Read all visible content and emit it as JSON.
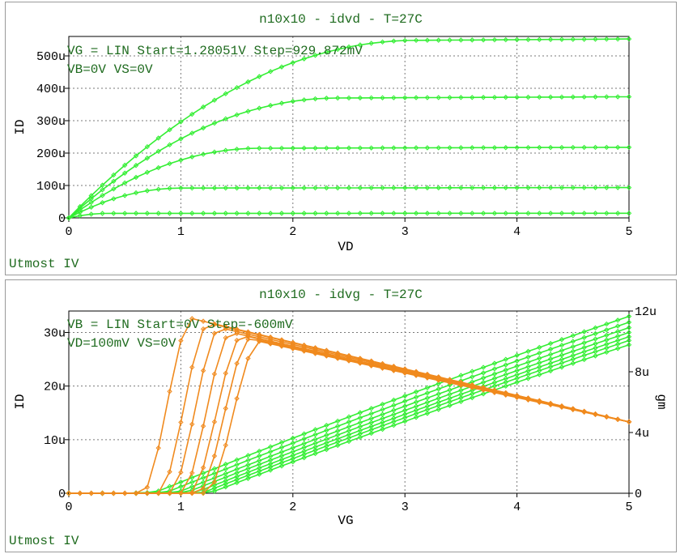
{
  "chart_data": [
    {
      "type": "line",
      "title": "n10x10 - idvd - T=27C",
      "annotation_lines": [
        "VG = LIN Start=1.28051V Step=929.872mV",
        "VB=0V VS=0V"
      ],
      "footer": "Utmost IV",
      "xlabel": "VD",
      "ylabel": "ID",
      "xlim": [
        0,
        5
      ],
      "ylim": [
        0,
        560
      ],
      "x_ticks": [
        "0",
        "1",
        "2",
        "3",
        "4",
        "5"
      ],
      "y_ticks": [
        "0",
        "100u",
        "200u",
        "300u",
        "400u",
        "500u"
      ],
      "y_unit": "uA",
      "grid": true,
      "series_color": "#33ee33",
      "series": [
        {
          "sat": 14,
          "vdsat": 0.35
        },
        {
          "sat": 92,
          "vdsat": 1.0
        },
        {
          "sat": 215,
          "vdsat": 1.7
        },
        {
          "sat": 370,
          "vdsat": 2.4
        },
        {
          "sat": 548,
          "vdsat": 3.1
        }
      ]
    },
    {
      "type": "line",
      "title": "n10x10 - idvg - T=27C",
      "annotation_lines": [
        "VB = LIN Start=0V Step=-600mV",
        "VD=100mV VS=0V"
      ],
      "footer": "Utmost IV",
      "xlabel": "VG",
      "ylabel": "ID",
      "y2label": "gm",
      "xlim": [
        0,
        5
      ],
      "ylim": [
        0,
        34
      ],
      "y2lim": [
        0,
        12
      ],
      "x_ticks": [
        "0",
        "1",
        "2",
        "3",
        "4",
        "5"
      ],
      "y_ticks": [
        "0",
        "10u",
        "20u",
        "30u"
      ],
      "y2_ticks": [
        "0",
        "4u",
        "8u",
        "12u"
      ],
      "grid": true,
      "id_color": "#33ee33",
      "gm_color": "#f08a1e",
      "id_series": [
        {
          "vth": 0.75,
          "id_at_5v": 33.0
        },
        {
          "vth": 0.85,
          "id_at_5v": 31.9
        },
        {
          "vth": 0.95,
          "id_at_5v": 30.9
        },
        {
          "vth": 1.03,
          "id_at_5v": 30.0
        },
        {
          "vth": 1.11,
          "id_at_5v": 29.2
        },
        {
          "vth": 1.18,
          "id_at_5v": 28.5
        },
        {
          "vth": 1.25,
          "id_at_5v": 27.7
        }
      ],
      "gm_series": [
        {
          "rise_start": 0.65,
          "peak_vg": 1.1,
          "peak": 11.5
        },
        {
          "rise_start": 0.8,
          "peak_vg": 1.25,
          "peak": 11.2
        },
        {
          "rise_start": 0.9,
          "peak_vg": 1.35,
          "peak": 10.9
        },
        {
          "rise_start": 1.0,
          "peak_vg": 1.45,
          "peak": 10.6
        },
        {
          "rise_start": 1.08,
          "peak_vg": 1.55,
          "peak": 10.4
        },
        {
          "rise_start": 1.15,
          "peak_vg": 1.62,
          "peak": 10.2
        },
        {
          "rise_start": 1.22,
          "peak_vg": 1.7,
          "peak": 10.0
        }
      ],
      "gm_at_5v": 4.7
    }
  ]
}
